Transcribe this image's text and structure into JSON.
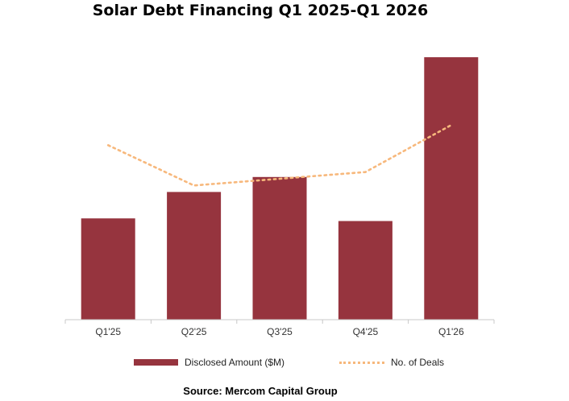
{
  "chart_data": {
    "type": "bar",
    "title": "Solar Debt Financing Q1 2025-Q1 2026",
    "categories": [
      "Q1'25",
      "Q2'25",
      "Q3'25",
      "Q4'25",
      "Q1'26"
    ],
    "series": [
      {
        "name": "Disclosed Amount ($M)",
        "type": "bar",
        "color": "#96343e",
        "values": [
          1150,
          1450,
          1620,
          1120,
          2980
        ]
      },
      {
        "name": "No. of Deals",
        "type": "line",
        "style": "dotted",
        "color": "#f7b87c",
        "values": [
          26,
          20,
          21,
          22,
          29
        ]
      }
    ],
    "ylim_bars": [
      0,
      3200
    ],
    "ylim_line": [
      0,
      42
    ],
    "grid": false,
    "legend_position": "bottom",
    "source": "Source: Mercom Capital Group"
  }
}
